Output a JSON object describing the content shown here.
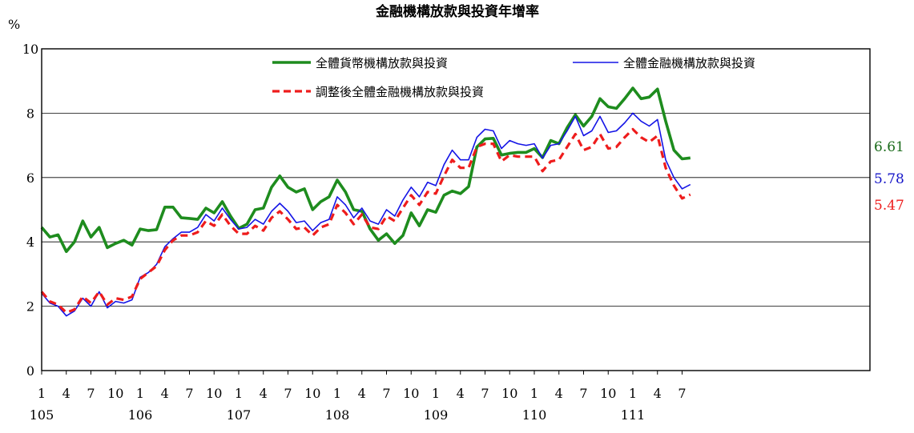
{
  "chart_data": {
    "type": "line",
    "title": "金融機構放款與投資年增率",
    "ylabel": "%",
    "ylim": [
      0,
      10
    ],
    "yticks": [
      0,
      2,
      4,
      6,
      8,
      10
    ],
    "grid": true,
    "legend_position": "top",
    "x_tick_labels": [
      "1",
      "4",
      "7",
      "10",
      "1",
      "4",
      "7",
      "10",
      "1",
      "4",
      "7",
      "10",
      "1",
      "4",
      "7",
      "10",
      "1",
      "4",
      "7",
      "10",
      "1",
      "4",
      "7",
      "10",
      "1",
      "4",
      "7"
    ],
    "year_labels": [
      "105",
      "106",
      "107",
      "108",
      "109",
      "110",
      "111"
    ],
    "series": [
      {
        "name": "全體貨幣機構放款與投資",
        "color": "#1e8c1e",
        "end_label": "6.61",
        "label_color": "#1a6b1a",
        "values": [
          4.45,
          4.15,
          4.22,
          3.7,
          4.0,
          4.65,
          4.15,
          4.45,
          3.82,
          3.95,
          4.05,
          3.9,
          4.4,
          4.35,
          4.38,
          5.08,
          5.08,
          4.75,
          4.73,
          4.7,
          5.05,
          4.9,
          5.25,
          4.8,
          4.42,
          4.55,
          5.0,
          5.05,
          5.7,
          6.05,
          5.7,
          5.55,
          5.65,
          5.0,
          5.25,
          5.4,
          5.92,
          5.55,
          5.0,
          4.95,
          4.4,
          4.05,
          4.25,
          3.95,
          4.2,
          4.9,
          4.5,
          5.0,
          4.92,
          5.45,
          5.58,
          5.5,
          5.72,
          6.95,
          7.2,
          7.22,
          6.7,
          6.75,
          6.78,
          6.78,
          6.9,
          6.62,
          7.15,
          7.05,
          7.55,
          7.95,
          7.6,
          7.9,
          8.45,
          8.2,
          8.15,
          8.45,
          8.78,
          8.45,
          8.5,
          8.75,
          7.75,
          6.85,
          6.58,
          6.61
        ]
      },
      {
        "name": "全體金融機構放款與投資",
        "color": "#1414e6",
        "end_label": "5.78",
        "label_color": "#1414c8",
        "values": [
          2.4,
          2.1,
          2.0,
          1.7,
          1.85,
          2.25,
          2.0,
          2.45,
          1.95,
          2.15,
          2.1,
          2.2,
          2.9,
          3.05,
          3.3,
          3.85,
          4.1,
          4.3,
          4.3,
          4.45,
          4.85,
          4.65,
          5.05,
          4.7,
          4.4,
          4.45,
          4.7,
          4.55,
          4.95,
          5.2,
          4.95,
          4.6,
          4.65,
          4.35,
          4.6,
          4.7,
          5.4,
          5.15,
          4.75,
          5.05,
          4.65,
          4.55,
          5.0,
          4.8,
          5.3,
          5.7,
          5.4,
          5.85,
          5.75,
          6.4,
          6.85,
          6.55,
          6.55,
          7.25,
          7.5,
          7.45,
          6.9,
          7.15,
          7.05,
          7.0,
          7.05,
          6.6,
          7.0,
          7.05,
          7.45,
          7.9,
          7.3,
          7.45,
          7.9,
          7.4,
          7.45,
          7.7,
          8.0,
          7.75,
          7.6,
          7.8,
          6.55,
          6.0,
          5.65,
          5.78
        ]
      },
      {
        "name": "調整後全體金融機構放款與投資",
        "color": "#ee1c1c",
        "end_label": "5.47",
        "label_color": "#ee1c1c",
        "values": [
          2.45,
          2.15,
          2.05,
          1.8,
          1.9,
          2.3,
          2.1,
          2.45,
          2.05,
          2.25,
          2.2,
          2.3,
          2.85,
          3.05,
          3.25,
          3.75,
          4.05,
          4.2,
          4.2,
          4.3,
          4.65,
          4.5,
          4.85,
          4.5,
          4.25,
          4.25,
          4.5,
          4.35,
          4.75,
          4.95,
          4.7,
          4.4,
          4.45,
          4.2,
          4.45,
          4.55,
          5.15,
          4.9,
          4.55,
          4.85,
          4.45,
          4.4,
          4.8,
          4.65,
          5.05,
          5.45,
          5.15,
          5.55,
          5.5,
          6.05,
          6.55,
          6.3,
          6.3,
          6.95,
          7.05,
          7.05,
          6.5,
          6.7,
          6.65,
          6.65,
          6.65,
          6.2,
          6.5,
          6.55,
          6.95,
          7.35,
          6.85,
          6.95,
          7.35,
          6.9,
          6.95,
          7.25,
          7.5,
          7.25,
          7.1,
          7.3,
          6.3,
          5.75,
          5.35,
          5.47
        ]
      }
    ]
  }
}
